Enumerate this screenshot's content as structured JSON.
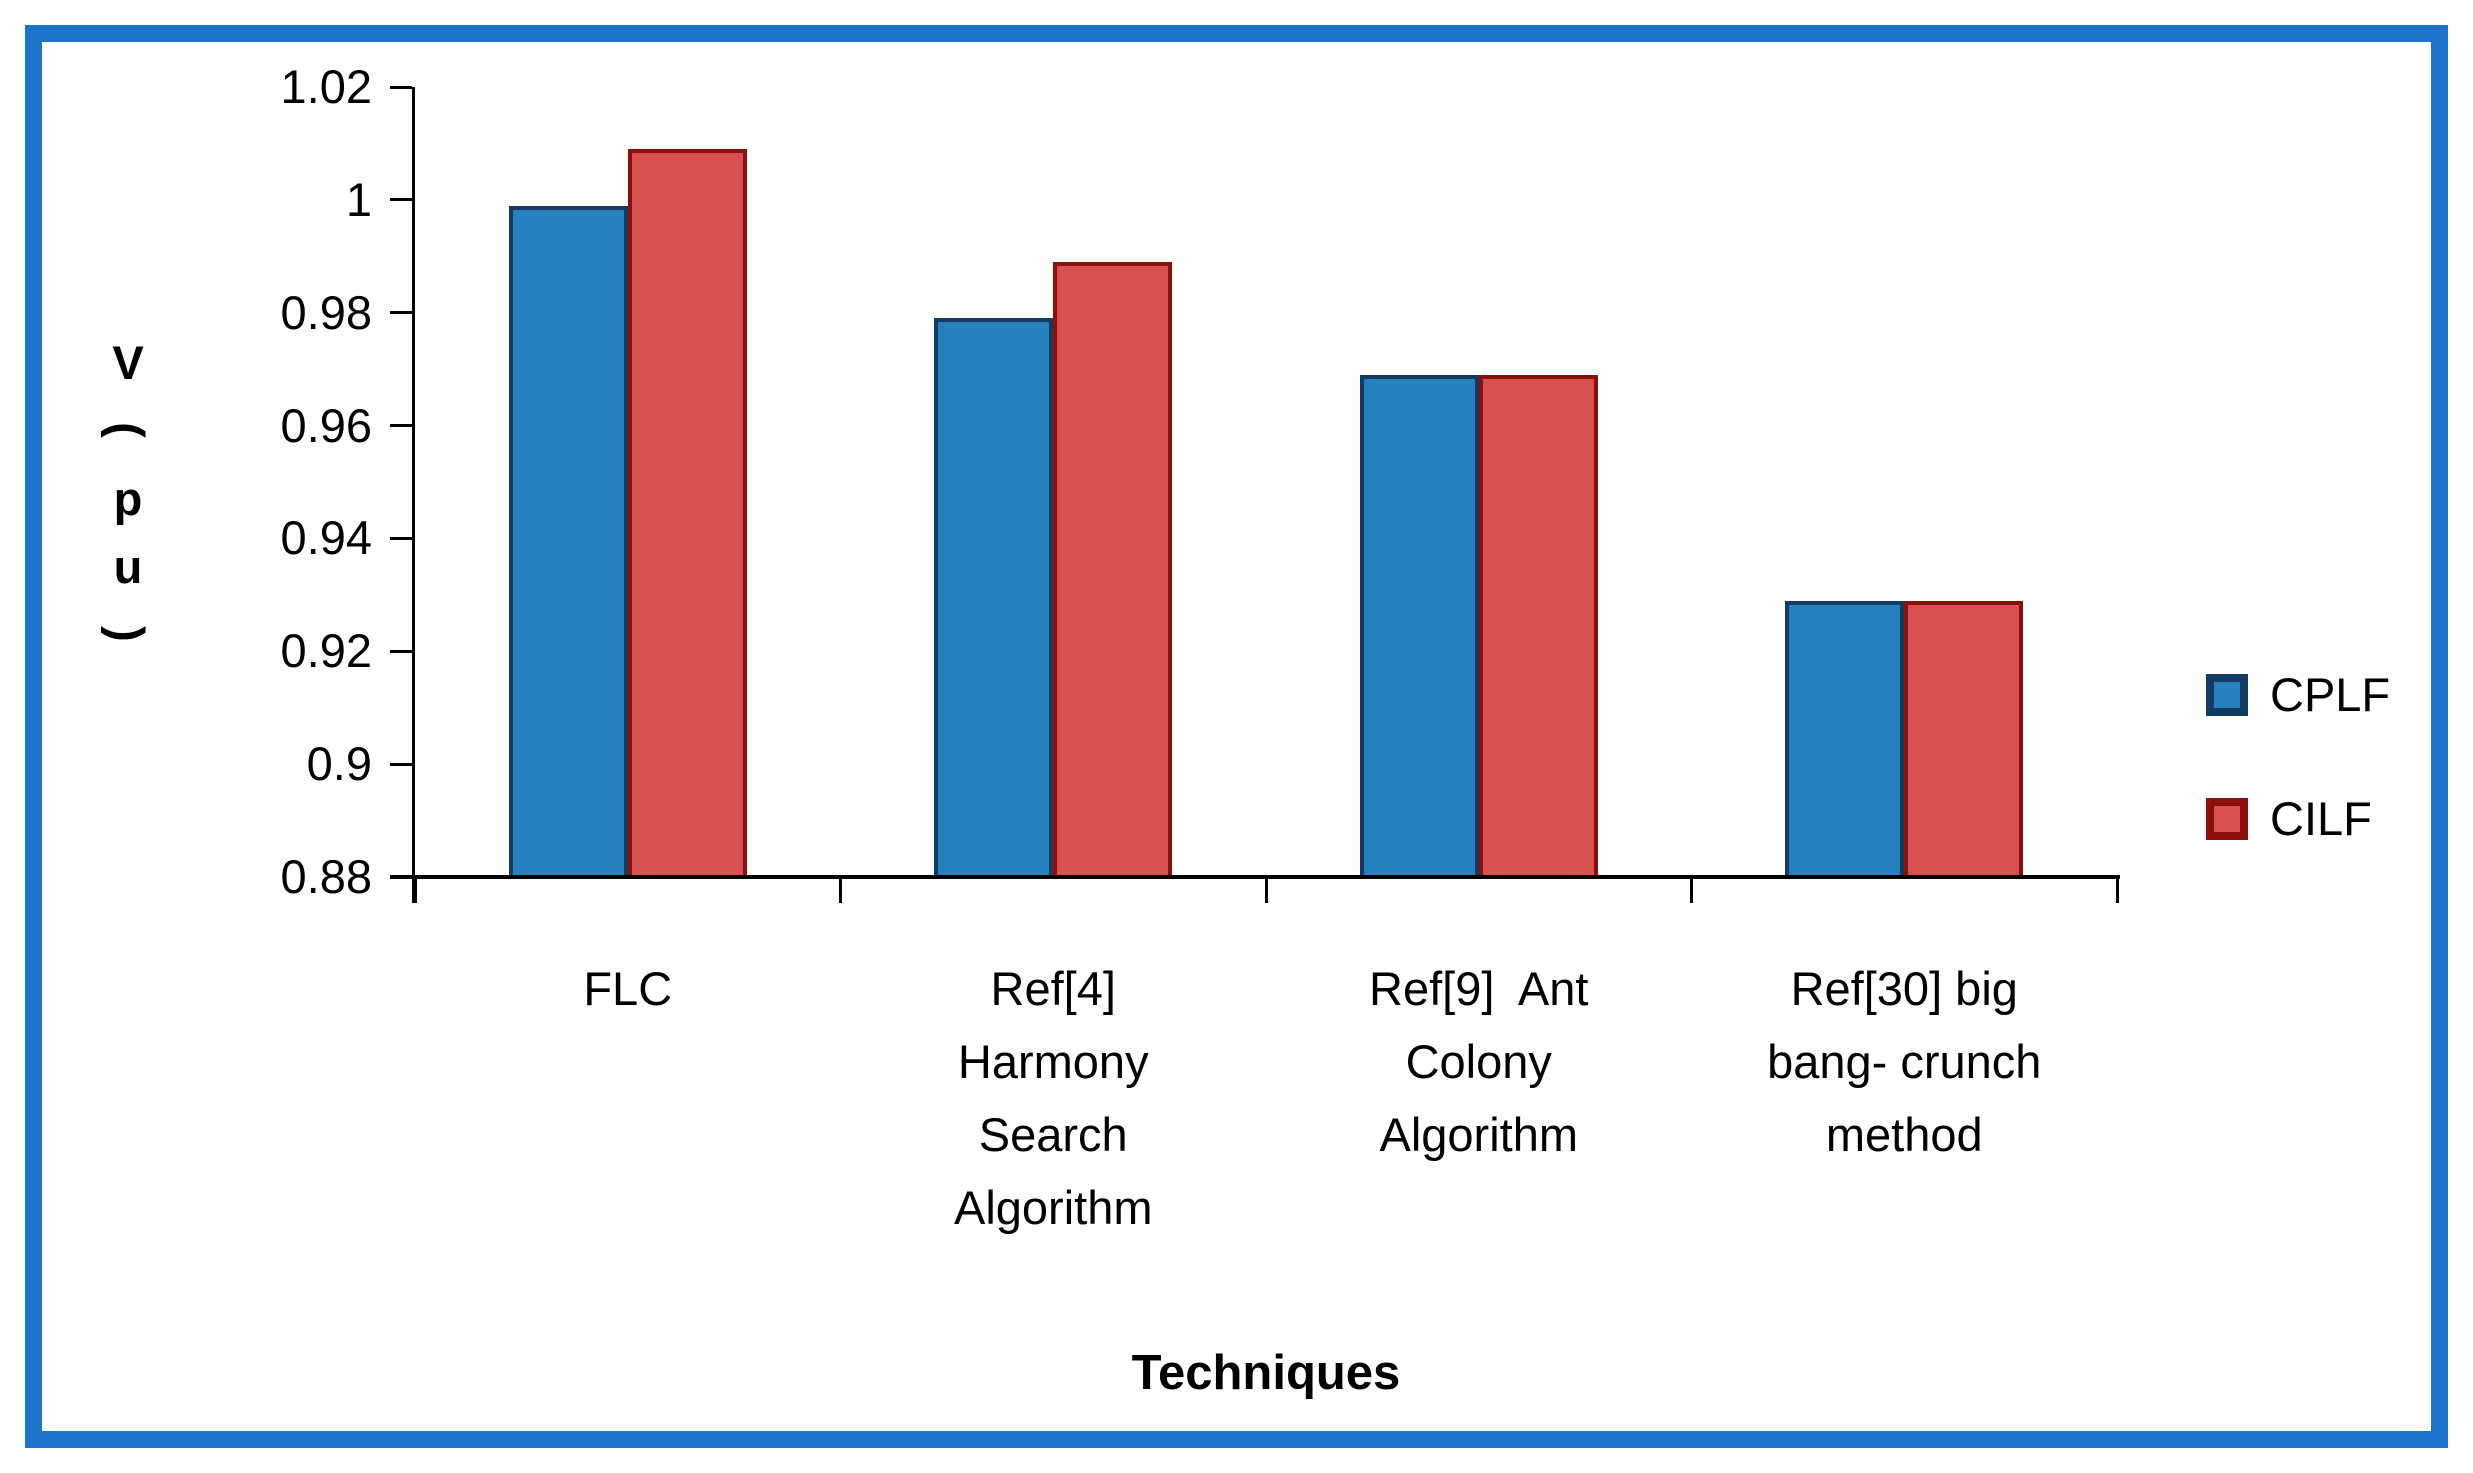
{
  "frame": {
    "border_color": "#1B74C9"
  },
  "chart_data": {
    "type": "bar",
    "title": "",
    "xlabel": "Techniques",
    "ylabel": "V (pu)",
    "categories": [
      "FLC",
      "Ref[4]\nHarmony\nSearch\nAlgorithm",
      "Ref[9]  Ant\nColony\nAlgorithm",
      "Ref[30] big\nbang- crunch\nmethod"
    ],
    "series": [
      {
        "name": "CPLF",
        "values": [
          0.999,
          0.979,
          0.969,
          0.929
        ],
        "fill": "#2581BE",
        "border": "#123A63"
      },
      {
        "name": "CILF",
        "values": [
          1.009,
          0.989,
          0.969,
          0.929
        ],
        "fill": "#D95050",
        "border": "#8B100C"
      }
    ],
    "ylim": [
      0.88,
      1.02
    ],
    "yticks": [
      0.88,
      0.9,
      0.92,
      0.94,
      0.96,
      0.98,
      1,
      1.02
    ],
    "ytick_labels": [
      "0.88",
      "0.9",
      "0.92",
      "0.94",
      "0.96",
      "0.98",
      "1",
      "1.02"
    ],
    "legend_position": "right",
    "grid": false,
    "axis_color": "#000000"
  }
}
